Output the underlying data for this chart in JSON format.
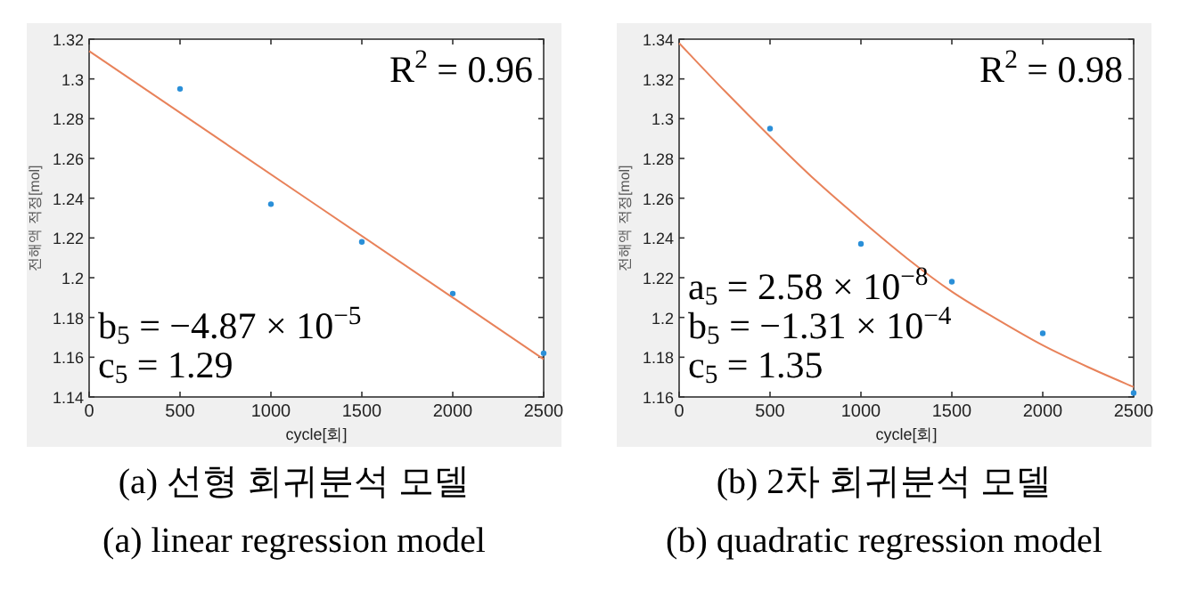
{
  "chart_data": [
    {
      "type": "scatter",
      "title": "(a) 선형 회귀분석 모델",
      "subtitle": "(a) linear regression model",
      "xlabel": "cycle[회]",
      "ylabel": "전해액 적정[mol]",
      "annotations": [
        "R$^{2}$ = 0.96",
        "b$_{5}$ = −4.87 × 10$^{−5}$",
        "c$_{5}$ = 1.29"
      ],
      "xlim": [
        0,
        2500
      ],
      "ylim": [
        1.14,
        1.32
      ],
      "xticks": [
        0,
        500,
        1000,
        1500,
        2000,
        2500
      ],
      "yticks": [
        1.14,
        1.16,
        1.18,
        1.2,
        1.22,
        1.24,
        1.26,
        1.28,
        1.3,
        1.32
      ],
      "grid": false,
      "series": [
        {
          "type": "scatter",
          "color": "#2a8fd8",
          "x": [
            500,
            1000,
            1500,
            2000,
            2500
          ],
          "values": [
            1.295,
            1.237,
            1.218,
            1.192,
            1.162
          ]
        },
        {
          "type": "line",
          "color": "#e8825a",
          "x": [
            0,
            2500
          ],
          "values": [
            1.314,
            1.159
          ]
        }
      ]
    },
    {
      "type": "scatter",
      "title": "(b) 2차 회귀분석 모델",
      "subtitle": "(b) quadratic regression model",
      "xlabel": "cycle[회]",
      "ylabel": "전해액 적정[mol]",
      "annotations": [
        "R$^{2}$ = 0.98",
        "a$_{5}$ = 2.58 × 10$^{−8}$",
        "b$_{5}$ = −1.31 × 10$^{−4}$",
        "c$_{5}$ = 1.35"
      ],
      "xlim": [
        0,
        2500
      ],
      "ylim": [
        1.16,
        1.34
      ],
      "xticks": [
        0,
        500,
        1000,
        1500,
        2000,
        2500
      ],
      "yticks": [
        1.16,
        1.18,
        1.2,
        1.22,
        1.24,
        1.26,
        1.28,
        1.3,
        1.32,
        1.34
      ],
      "grid": false,
      "series": [
        {
          "type": "scatter",
          "color": "#2a8fd8",
          "x": [
            500,
            1000,
            1500,
            2000,
            2500
          ],
          "values": [
            1.295,
            1.237,
            1.218,
            1.192,
            1.162
          ]
        },
        {
          "type": "line",
          "color": "#e8825a",
          "x": [
            0,
            250,
            500,
            750,
            1000,
            1250,
            1500,
            1750,
            2000,
            2250,
            2500
          ],
          "values": [
            1.338,
            1.314,
            1.291,
            1.269,
            1.249,
            1.23,
            1.213,
            1.199,
            1.186,
            1.175,
            1.165
          ]
        }
      ]
    }
  ]
}
